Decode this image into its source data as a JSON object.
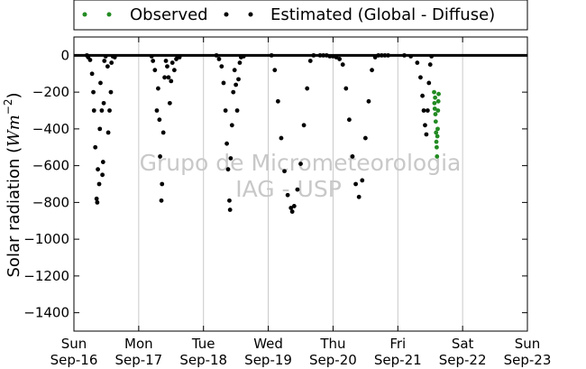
{
  "chart_data": {
    "type": "scatter",
    "ylabel_text": "Solar radiation (",
    "ylabel_unit": "Wm",
    "ylabel_exp": "−2",
    "ylabel_close": ")",
    "ylim": [
      -1500,
      100
    ],
    "yticks": [
      0,
      -200,
      -400,
      -600,
      -800,
      -1000,
      -1200,
      -1400
    ],
    "ytick_labels": [
      "0",
      "−200",
      "−400",
      "−600",
      "−800",
      "−1000",
      "−1200",
      "−1400"
    ],
    "xlim": [
      0,
      7
    ],
    "xticks": [
      {
        "x": 0,
        "line1": "Sun",
        "line2": "Sep-16"
      },
      {
        "x": 1,
        "line1": "Mon",
        "line2": "Sep-17"
      },
      {
        "x": 2,
        "line1": "Tue",
        "line2": "Sep-18"
      },
      {
        "x": 3,
        "line1": "Wed",
        "line2": "Sep-19"
      },
      {
        "x": 4,
        "line1": "Thu",
        "line2": "Sep-20"
      },
      {
        "x": 5,
        "line1": "Fri",
        "line2": "Sep-21"
      },
      {
        "x": 6,
        "line1": "Sat",
        "line2": "Sep-22"
      },
      {
        "x": 7,
        "line1": "Sun",
        "line2": "Sep-23"
      }
    ],
    "grid": "vertical",
    "legend_position": "top-center",
    "watermark_line1": "Grupo de Micrometeorologia",
    "watermark_line2": "IAG - USP",
    "series": [
      {
        "name": "Observed",
        "color": "#228b22",
        "points": [
          [
            5.56,
            -200
          ],
          [
            5.565,
            -260
          ],
          [
            5.57,
            -290
          ],
          [
            5.575,
            -230
          ],
          [
            5.58,
            -320
          ],
          [
            5.585,
            -360
          ],
          [
            5.59,
            -420
          ],
          [
            5.595,
            -470
          ],
          [
            5.6,
            -500
          ],
          [
            5.605,
            -550
          ],
          [
            5.61,
            -440
          ],
          [
            5.615,
            -400
          ],
          [
            5.62,
            -300
          ],
          [
            5.625,
            -250
          ],
          [
            5.63,
            -210
          ]
        ]
      },
      {
        "name": "Estimated (Global - Diffuse)",
        "color": "#000000",
        "points": [
          [
            0.2,
            0
          ],
          [
            0.22,
            -10
          ],
          [
            0.25,
            -25
          ],
          [
            0.28,
            -100
          ],
          [
            0.3,
            -200
          ],
          [
            0.31,
            -300
          ],
          [
            0.33,
            -500
          ],
          [
            0.35,
            -780
          ],
          [
            0.36,
            -800
          ],
          [
            0.37,
            -620
          ],
          [
            0.39,
            -700
          ],
          [
            0.4,
            -400
          ],
          [
            0.41,
            -150
          ],
          [
            0.43,
            -300
          ],
          [
            0.44,
            -650
          ],
          [
            0.45,
            -580
          ],
          [
            0.46,
            -260
          ],
          [
            0.47,
            -30
          ],
          [
            0.49,
            -5
          ],
          [
            0.52,
            -60
          ],
          [
            0.53,
            -420
          ],
          [
            0.55,
            -300
          ],
          [
            0.57,
            -200
          ],
          [
            0.58,
            -40
          ],
          [
            0.6,
            -5
          ],
          [
            0.63,
            -10
          ],
          [
            1.2,
            -5
          ],
          [
            1.22,
            -30
          ],
          [
            1.25,
            -80
          ],
          [
            1.28,
            -300
          ],
          [
            1.3,
            -180
          ],
          [
            1.32,
            -350
          ],
          [
            1.33,
            -550
          ],
          [
            1.35,
            -790
          ],
          [
            1.36,
            -700
          ],
          [
            1.38,
            -420
          ],
          [
            1.4,
            -120
          ],
          [
            1.42,
            -30
          ],
          [
            1.44,
            -60
          ],
          [
            1.46,
            -120
          ],
          [
            1.48,
            -260
          ],
          [
            1.5,
            -140
          ],
          [
            1.52,
            -40
          ],
          [
            1.55,
            -80
          ],
          [
            1.58,
            -20
          ],
          [
            1.6,
            -5
          ],
          [
            1.63,
            -10
          ],
          [
            2.2,
            0
          ],
          [
            2.24,
            -20
          ],
          [
            2.28,
            -60
          ],
          [
            2.31,
            -150
          ],
          [
            2.34,
            -300
          ],
          [
            2.36,
            -480
          ],
          [
            2.38,
            -620
          ],
          [
            2.4,
            -790
          ],
          [
            2.41,
            -840
          ],
          [
            2.42,
            -560
          ],
          [
            2.44,
            -380
          ],
          [
            2.46,
            -200
          ],
          [
            2.48,
            -80
          ],
          [
            2.5,
            -160
          ],
          [
            2.52,
            -300
          ],
          [
            2.54,
            -130
          ],
          [
            2.56,
            -40
          ],
          [
            2.58,
            -10
          ],
          [
            2.62,
            -5
          ],
          [
            3.05,
            0
          ],
          [
            3.1,
            -80
          ],
          [
            3.15,
            -250
          ],
          [
            3.2,
            -450
          ],
          [
            3.25,
            -630
          ],
          [
            3.3,
            -760
          ],
          [
            3.35,
            -830
          ],
          [
            3.37,
            -850
          ],
          [
            3.4,
            -820
          ],
          [
            3.45,
            -730
          ],
          [
            3.5,
            -590
          ],
          [
            3.55,
            -380
          ],
          [
            3.6,
            -180
          ],
          [
            3.65,
            -30
          ],
          [
            3.7,
            0
          ],
          [
            3.8,
            0
          ],
          [
            3.85,
            0
          ],
          [
            3.9,
            0
          ],
          [
            3.95,
            -5
          ],
          [
            4.0,
            -5
          ],
          [
            4.05,
            -10
          ],
          [
            4.1,
            -20
          ],
          [
            4.15,
            -50
          ],
          [
            4.2,
            -180
          ],
          [
            4.25,
            -350
          ],
          [
            4.3,
            -550
          ],
          [
            4.35,
            -700
          ],
          [
            4.4,
            -770
          ],
          [
            4.45,
            -680
          ],
          [
            4.5,
            -450
          ],
          [
            4.55,
            -250
          ],
          [
            4.6,
            -80
          ],
          [
            4.65,
            -10
          ],
          [
            4.7,
            0
          ],
          [
            4.75,
            0
          ],
          [
            4.8,
            0
          ],
          [
            4.85,
            0
          ],
          [
            5.1,
            0
          ],
          [
            5.2,
            -5
          ],
          [
            5.3,
            -40
          ],
          [
            5.35,
            -120
          ],
          [
            5.38,
            -220
          ],
          [
            5.4,
            -300
          ],
          [
            5.42,
            -380
          ],
          [
            5.44,
            -430
          ],
          [
            5.46,
            -300
          ],
          [
            5.48,
            -150
          ],
          [
            5.5,
            -50
          ],
          [
            5.52,
            -5
          ]
        ]
      }
    ]
  }
}
